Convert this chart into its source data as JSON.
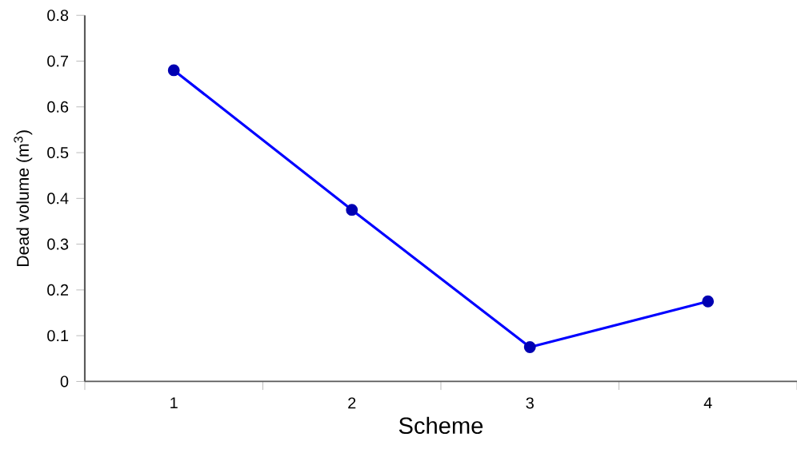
{
  "chart_data": {
    "type": "line",
    "xlabel": "Scheme",
    "ylabel": "Dead volume (m$^{3}$)",
    "categories": [
      "1",
      "2",
      "3",
      "4"
    ],
    "values": [
      0.68,
      0.375,
      0.075,
      0.175
    ],
    "color": "#0000ff",
    "marker": "circle",
    "line_style": "solid",
    "ylim": [
      0,
      0.8
    ],
    "yticks": [
      0,
      0.1,
      0.2,
      0.3,
      0.4,
      0.5,
      0.6,
      0.7,
      0.8
    ],
    "grid": false
  }
}
